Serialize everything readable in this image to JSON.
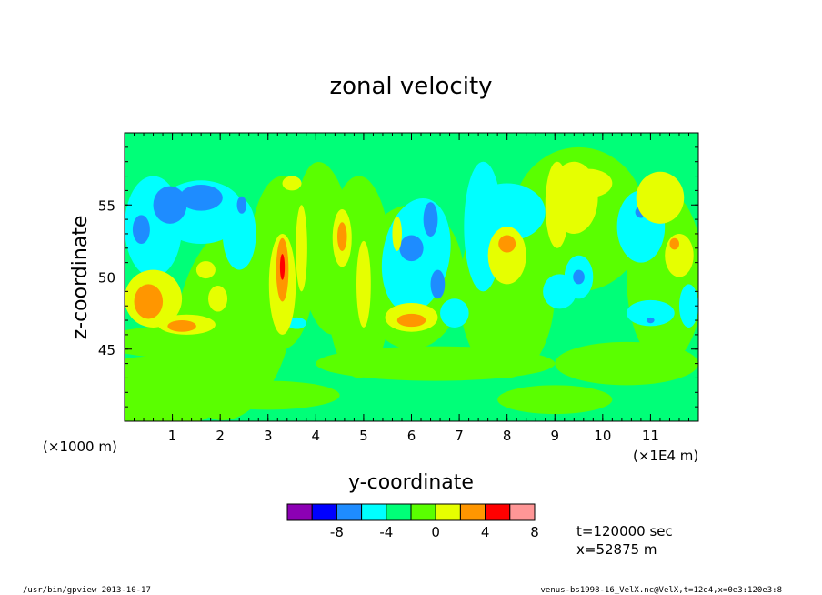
{
  "chart_data": {
    "type": "heatmap",
    "title": "zonal velocity",
    "xlabel": "y-coordinate",
    "ylabel": "z-coordinate",
    "x_scale_note": "(×1E4 m)",
    "y_scale_note": "(×1000 m)",
    "xlim": [
      0,
      12
    ],
    "ylim": [
      40,
      60
    ],
    "x_ticks": [
      "1",
      "2",
      "3",
      "4",
      "5",
      "6",
      "7",
      "8",
      "9",
      "10",
      "11"
    ],
    "y_ticks": [
      "45",
      "50",
      "55"
    ],
    "colorbar": {
      "colors": [
        "#8c00b4",
        "#0000ff",
        "#1e8cff",
        "#00ffff",
        "#00ff78",
        "#5aff00",
        "#e6ff00",
        "#ff9600",
        "#ff0000",
        "#ff9696"
      ],
      "tick_labels": [
        "-8",
        "-4",
        "0",
        "4",
        "8"
      ]
    },
    "annotations": [
      "t=120000 sec",
      "x=52875 m"
    ]
  },
  "footer": {
    "left": "/usr/bin/gpview  2013-10-17",
    "right": "venus-bs1998-16_VelX.nc@VelX,t=12e4,x=0e3:120e3:8"
  }
}
